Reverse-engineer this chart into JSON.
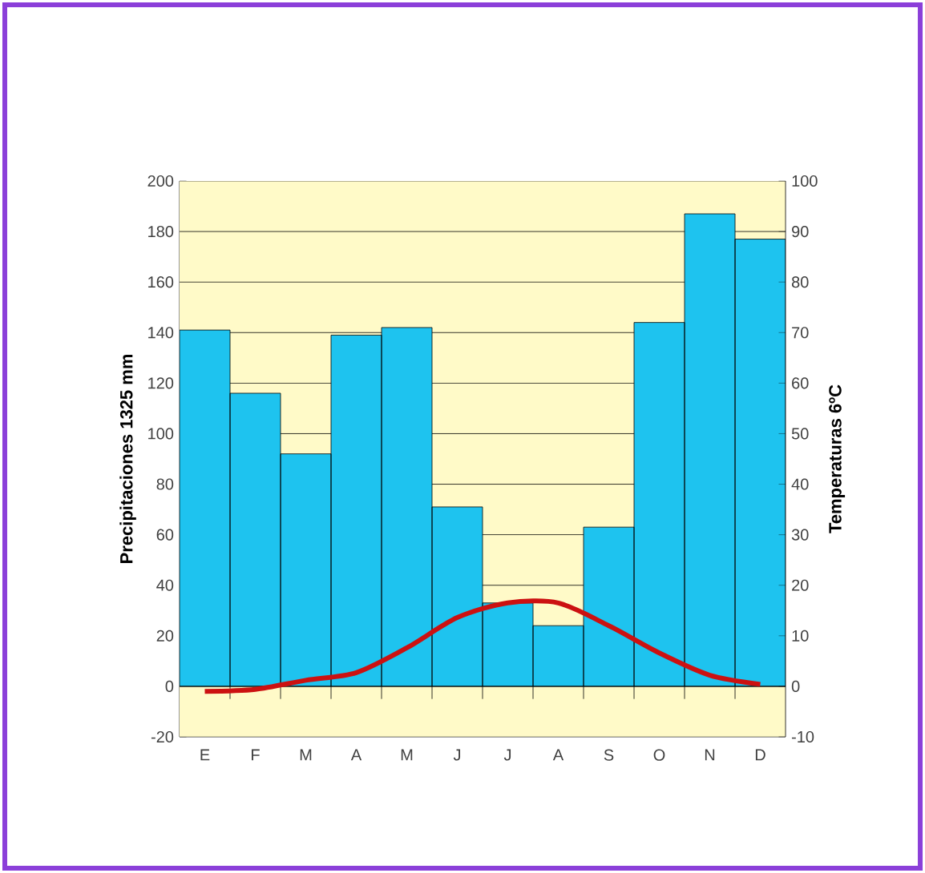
{
  "chart_data": {
    "type": "bar",
    "categories": [
      "E",
      "F",
      "M",
      "A",
      "M",
      "J",
      "J",
      "A",
      "S",
      "O",
      "N",
      "D"
    ],
    "series": [
      {
        "color": "#1ec3ef",
        "values": [
          141,
          116,
          92,
          139,
          142,
          71,
          33,
          24,
          63,
          144,
          187,
          177
        ]
      },
      {
        "type": "line",
        "axis": "y2",
        "color": "#cc1111",
        "values": [
          -1,
          -0.6,
          1.2,
          2.7,
          7.6,
          13.6,
          16.5,
          16.5,
          12,
          6.6,
          2.2,
          0.4
        ]
      }
    ],
    "ylabel": "Precipitaciones 1325 mm",
    "y2label": "Temperaturas 6ºC",
    "ylim": [
      -20,
      200
    ],
    "yticks": [
      -20,
      0,
      20,
      40,
      60,
      80,
      100,
      120,
      140,
      160,
      180,
      200
    ],
    "y2lim": [
      -10,
      100
    ],
    "y2ticks": [
      -10,
      0,
      10,
      20,
      30,
      40,
      50,
      60,
      70,
      80,
      90,
      100
    ],
    "bands": [
      {
        "axis": "y",
        "from": -20,
        "to": 200,
        "color": "#fffac8"
      }
    ],
    "grid": "y",
    "marker": "none",
    "line_style": "solid"
  }
}
